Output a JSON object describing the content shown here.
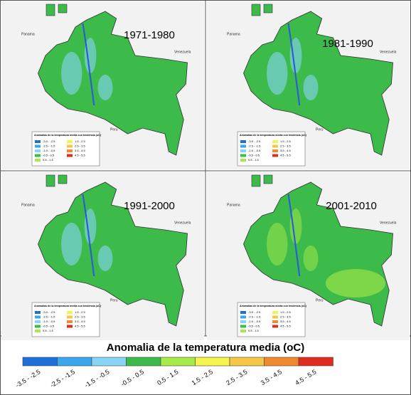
{
  "panels": [
    {
      "title": "1971-1980"
    },
    {
      "title": "1981-1990"
    },
    {
      "title": "1991-2000"
    },
    {
      "title": "2001-2010"
    }
  ],
  "inset_legend_title": "Anomalias de la temperatura media con tendencia (oC)",
  "map_labels": {
    "venezuela": "Venezuela",
    "peru": "Peru",
    "panama": "Panama"
  },
  "legend": {
    "title": "Anomalia de la temperatura media (oC)",
    "items": [
      {
        "label": "-3.5 - -2.5",
        "color": "#1f6fd8"
      },
      {
        "label": "-2.5 - -1.5",
        "color": "#3aa6ee"
      },
      {
        "label": "-1.5 - -0.5",
        "color": "#86d4f6"
      },
      {
        "label": "-0.5 - 0.5",
        "color": "#3dbb4a"
      },
      {
        "label": "0.5 - 1.5",
        "color": "#a8ea4a"
      },
      {
        "label": "1.5 - 2.5",
        "color": "#f4f44a"
      },
      {
        "label": "2.5 - 3.5",
        "color": "#f6c646"
      },
      {
        "label": "3.5 - 4.5",
        "color": "#f08a2c"
      },
      {
        "label": "4.5 - 5.5",
        "color": "#e02b1f"
      }
    ]
  }
}
